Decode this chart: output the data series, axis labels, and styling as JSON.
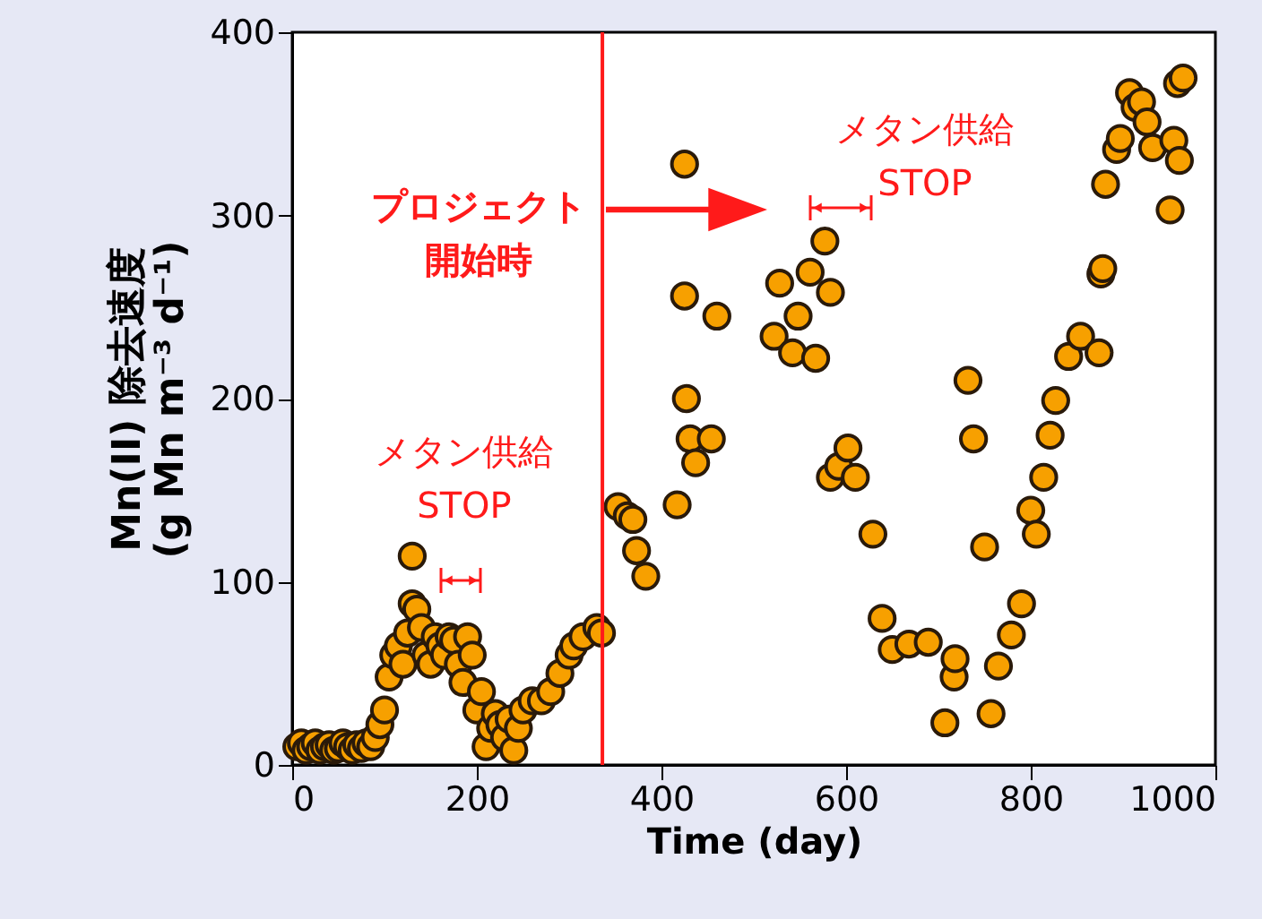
{
  "chart_data": {
    "type": "scatter",
    "xlabel": "Time (day)",
    "ylabel": "Mn(II) 除去速度\n(g Mn m⁻³ d⁻¹)",
    "x": [
      5,
      10,
      15,
      20,
      25,
      30,
      35,
      40,
      45,
      50,
      55,
      60,
      65,
      70,
      75,
      80,
      85,
      90,
      95,
      100,
      105,
      110,
      115,
      120,
      125,
      130,
      130,
      135,
      140,
      145,
      150,
      155,
      160,
      165,
      170,
      175,
      180,
      185,
      190,
      195,
      200,
      205,
      210,
      215,
      220,
      225,
      230,
      235,
      240,
      245,
      250,
      260,
      270,
      280,
      290,
      300,
      305,
      315,
      330,
      335,
      353,
      363,
      369,
      373,
      383,
      417,
      425,
      425,
      427,
      431,
      437,
      454,
      460,
      522,
      528,
      542,
      548,
      561,
      567,
      577,
      583,
      583,
      592,
      602,
      610,
      629,
      639,
      650,
      668,
      689,
      707,
      717,
      718,
      732,
      738,
      750,
      757,
      765,
      779,
      790,
      800,
      806,
      814,
      821,
      827,
      841,
      854,
      874,
      876,
      878,
      881,
      893,
      897,
      907,
      913,
      920,
      926,
      932,
      951,
      955,
      959,
      961,
      965
    ],
    "values": [
      10,
      12,
      8,
      10,
      12,
      8,
      10,
      11,
      8,
      9,
      12,
      10,
      8,
      11,
      9,
      12,
      10,
      15,
      22,
      30,
      48,
      60,
      65,
      55,
      72,
      88,
      114,
      85,
      75,
      60,
      55,
      70,
      65,
      60,
      70,
      68,
      55,
      45,
      70,
      60,
      30,
      40,
      10,
      20,
      28,
      22,
      15,
      25,
      8,
      20,
      30,
      35,
      35,
      40,
      50,
      60,
      65,
      70,
      75,
      72,
      141,
      136,
      134,
      117,
      103,
      142,
      328,
      256,
      200,
      178,
      165,
      178,
      245,
      234,
      263,
      225,
      245,
      269,
      222,
      286,
      258,
      157,
      163,
      173,
      157,
      126,
      80,
      63,
      66,
      67,
      23,
      48,
      58,
      210,
      178,
      119,
      28,
      54,
      71,
      88,
      139,
      126,
      157,
      180,
      199,
      223,
      234,
      225,
      268,
      271,
      317,
      336,
      342,
      367,
      359,
      362,
      351,
      337,
      303,
      341,
      372,
      330,
      375
    ],
    "color": "#f7a000",
    "marker": "circle",
    "xlim": [
      0,
      1000
    ],
    "ylim": [
      0,
      400
    ],
    "xticks": [
      0,
      200,
      400,
      600,
      800,
      {
        "value": 1000,
        "label": "1000"
      }
    ],
    "yticks": [
      0,
      100,
      200,
      300,
      400
    ],
    "grid": false,
    "ref_lines": [
      {
        "axis": "x",
        "value": 336,
        "color": "#ff1a1a"
      }
    ],
    "annotations": [
      "メタン供給\nSTOP",
      "メタン供給\nSTOP",
      "プロジェクト開始時"
    ]
  }
}
